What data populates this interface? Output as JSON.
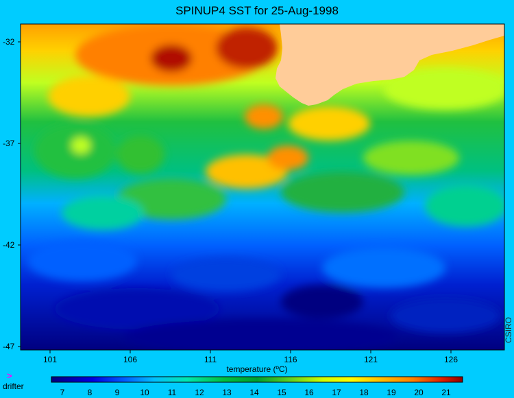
{
  "title": "SPINUP4 SST for 25-Aug-1998",
  "credit": "CSIRO",
  "map": {
    "lon_ticks": [
      "101",
      "106",
      "111",
      "116",
      "121",
      "126"
    ],
    "lat_ticks": [
      "-32",
      "-37",
      "-42",
      "-47"
    ],
    "land_color": "#ffcc99",
    "background_color": "#00ccff"
  },
  "colorbar": {
    "title": "temperature (ºC)",
    "ticks": [
      "7",
      "8",
      "9",
      "10",
      "11",
      "12",
      "13",
      "14",
      "15",
      "16",
      "17",
      "18",
      "19",
      "20",
      "21"
    ],
    "range": [
      6.6,
      21.6
    ],
    "colormap": [
      "#000080",
      "#0000e0",
      "#0060ff",
      "#00c0ff",
      "#00e8b0",
      "#00c040",
      "#00a030",
      "#60d020",
      "#d0ff00",
      "#ffff00",
      "#ffc000",
      "#ff8000",
      "#e02000",
      "#900000"
    ]
  },
  "legend": {
    "drifter_label": "drifter",
    "drifter_icon": ">"
  }
}
